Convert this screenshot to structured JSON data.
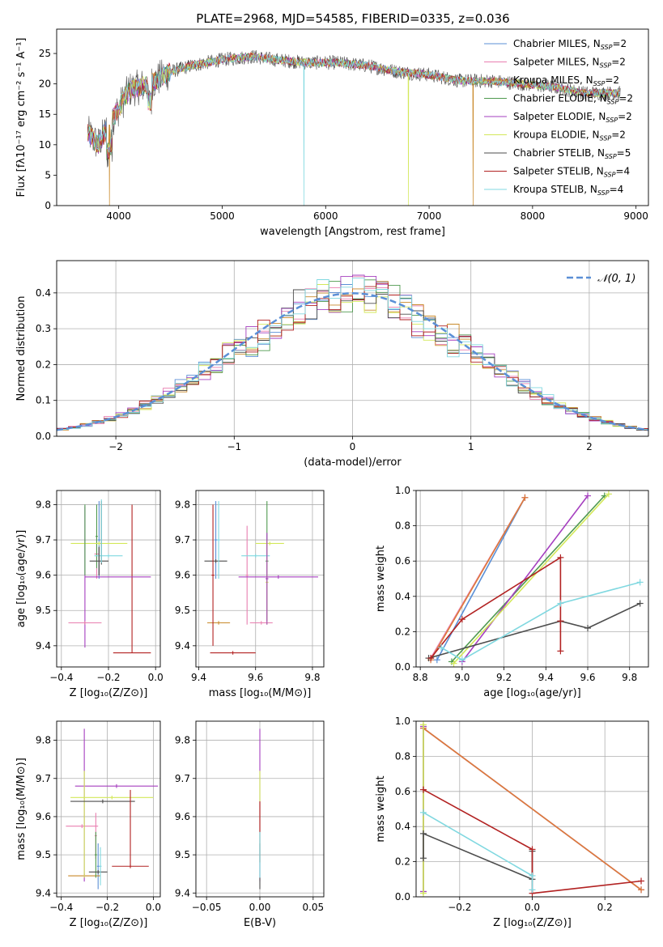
{
  "figure": {
    "title": "PLATE=2968, MJD=54585, FIBERID=0335, z=0.036"
  },
  "colors": {
    "Chabrier MILES": "#5b8fd6",
    "Salpeter MILES": "#e97fb0",
    "Kroupa MILES": "#c9892a",
    "Chabrier ELODIE": "#4f9a4f",
    "Salpeter ELODIE": "#a53fbf",
    "Kroupa ELODIE": "#d3e85a",
    "Chabrier STELIB": "#4d4d4d",
    "Salpeter STELIB": "#b22222",
    "Kroupa STELIB": "#80d8e0",
    "normal": "#5b8fd6",
    "orange_line": "#dd7a3a"
  },
  "chart_data": [
    {
      "id": "spectrum",
      "type": "line",
      "title": "PLATE=2968, MJD=54585, FIBERID=0335, z=0.036",
      "xlabel": "wavelength [Angstrom, rest frame]",
      "ylabel": "Flux [fλ10⁻¹⁷ erg cm⁻² s⁻¹ A⁻¹]",
      "xlim": [
        3400,
        9120
      ],
      "ylim": [
        0,
        29
      ],
      "xticks": [
        4000,
        5000,
        6000,
        7000,
        8000,
        9000
      ],
      "yticks": [
        0,
        5,
        10,
        15,
        20,
        25
      ],
      "grid": false,
      "legend_position": "top-right",
      "legend": [
        {
          "name": "Chabrier MILES",
          "nssp": "2"
        },
        {
          "name": "Salpeter MILES",
          "nssp": "2"
        },
        {
          "name": "Kroupa MILES",
          "nssp": "2"
        },
        {
          "name": "Chabrier ELODIE",
          "nssp": "2"
        },
        {
          "name": "Salpeter ELODIE",
          "nssp": "2"
        },
        {
          "name": "Kroupa ELODIE",
          "nssp": "2"
        },
        {
          "name": "Chabrier STELIB",
          "nssp": "5"
        },
        {
          "name": "Salpeter STELIB",
          "nssp": "4"
        },
        {
          "name": "Kroupa STELIB",
          "nssp": "4"
        }
      ],
      "continuum": {
        "x": [
          3700,
          3800,
          3900,
          4000,
          4100,
          4300,
          4500,
          4700,
          5000,
          5300,
          5500,
          5800,
          6100,
          6400,
          6700,
          7000,
          7300,
          7600,
          7900,
          8200,
          8500,
          8850
        ],
        "y": [
          12,
          10,
          13,
          16,
          19,
          20,
          22,
          23,
          24,
          24.5,
          24,
          23.5,
          23.5,
          23,
          22,
          21.5,
          20.5,
          20.5,
          20,
          19.5,
          18.5,
          18.5
        ]
      },
      "dropouts": [
        {
          "x": 3910,
          "series": "Kroupa MILES"
        },
        {
          "x": 5790,
          "series": "Kroupa STELIB"
        },
        {
          "x": 6800,
          "series": "Kroupa ELODIE"
        },
        {
          "x": 7425,
          "series": "Kroupa MILES"
        }
      ]
    },
    {
      "id": "residuals",
      "type": "line",
      "xlabel": "(data-model)/error",
      "ylabel": "Normed distribution",
      "xlim": [
        -2.5,
        2.5
      ],
      "ylim": [
        0,
        0.49
      ],
      "xticks": [
        -2,
        -1,
        0,
        1,
        2
      ],
      "xtick_labels": [
        "−2",
        "−1",
        "0",
        "1",
        "2"
      ],
      "yticks": [
        0.0,
        0.1,
        0.2,
        0.3,
        0.4
      ],
      "grid": true,
      "legend_position": "top-right",
      "legend": [
        {
          "name": "𝒩(0, 1)",
          "style": "dashed"
        }
      ],
      "bin_width": 0.1
    },
    {
      "id": "age_vs_z",
      "type": "scatter",
      "xlabel": "Z [log₁₀(Z/Z⊙)]",
      "ylabel": "age  [log₁₀(age/yr)]",
      "xlim": [
        -0.42,
        0.02
      ],
      "ylim": [
        9.34,
        9.84
      ],
      "xticks": [
        -0.4,
        -0.2,
        0.0
      ],
      "yticks": [
        9.4,
        9.5,
        9.6,
        9.7,
        9.8
      ],
      "grid": true,
      "points": [
        {
          "series": "Chabrier MILES",
          "x": -0.24,
          "xerr": 0.005,
          "y": 9.7,
          "yerr": 0.11
        },
        {
          "series": "Salpeter MILES",
          "x": -0.25,
          "xerr": 0.01,
          "y": 9.66,
          "yerr": 0.07
        },
        {
          "series": "Kroupa MILES",
          "x": -0.3,
          "xerr": 0.07,
          "y": 9.465,
          "yerr": 0.005
        },
        {
          "series": "Chabrier ELODIE",
          "x": -0.25,
          "xerr": 0.005,
          "y": 9.71,
          "yerr": 0.09
        },
        {
          "series": "Salpeter ELODIE",
          "x": -0.3,
          "xerr": 0.0,
          "y": 9.595,
          "yerr": 0.2
        },
        {
          "series": "Kroupa ELODIE",
          "x": -0.24,
          "xerr": 0.12,
          "y": 9.69,
          "yerr": 0.005
        },
        {
          "series": "Chabrier STELIB",
          "x": -0.24,
          "xerr": 0.04,
          "y": 9.64,
          "yerr": 0.04
        },
        {
          "series": "Salpeter STELIB",
          "x": -0.1,
          "xerr": 0.08,
          "y": 9.38,
          "yerr": 0.0
        },
        {
          "series": "Salpeter STELIB",
          "x": -0.1,
          "xerr": 0.0,
          "y": 9.59,
          "yerr": 0.21
        },
        {
          "series": "Salpeter ELODIE",
          "x": -0.16,
          "xerr": 0.14,
          "y": 9.595,
          "yerr": 0.0
        },
        {
          "series": "Kroupa STELIB",
          "x": -0.2,
          "xerr": 0.06,
          "y": 9.655,
          "yerr": 0.005
        },
        {
          "series": "Salpeter MILES",
          "x": -0.3,
          "xerr": 0.07,
          "y": 9.465,
          "yerr": 0.005
        },
        {
          "series": "Kroupa ELODIE",
          "x": -0.3,
          "xerr": 0.0,
          "y": 9.69,
          "yerr": 0.0
        },
        {
          "series": "Chabrier STELIB",
          "x": -0.23,
          "xerr": 0.0,
          "y": 9.72,
          "yerr": 0.09
        },
        {
          "series": "Kroupa STELIB",
          "x": -0.23,
          "xerr": 0.0,
          "y": 9.725,
          "yerr": 0.09
        },
        {
          "series": "Kroupa MILES",
          "x": -0.3,
          "xerr": 0.0,
          "y": 9.465,
          "yerr": 0.0
        },
        {
          "series": "Chabrier ELODIE",
          "x": -0.3,
          "xerr": 0.0,
          "y": 9.7,
          "yerr": 0.1
        },
        {
          "series": "Chabrier STELIB",
          "x": -0.24,
          "xerr": 0.0,
          "y": 9.64,
          "yerr": 0.04
        }
      ]
    },
    {
      "id": "age_vs_mass",
      "type": "scatter",
      "xlabel": "mass [log₁₀(M/M⊙)]",
      "ylabel": "",
      "xlim": [
        9.39,
        9.84
      ],
      "ylim": [
        9.34,
        9.84
      ],
      "xticks": [
        9.4,
        9.6,
        9.8
      ],
      "yticks": [
        9.4,
        9.5,
        9.6,
        9.7,
        9.8
      ],
      "grid": true,
      "points": [
        {
          "series": "Chabrier MILES",
          "x": 9.46,
          "xerr": 0.005,
          "y": 9.7,
          "yerr": 0.11
        },
        {
          "series": "Salpeter MILES",
          "x": 9.57,
          "xerr": 0.005,
          "y": 9.6,
          "yerr": 0.14
        },
        {
          "series": "Kroupa MILES",
          "x": 9.47,
          "xerr": 0.04,
          "y": 9.465,
          "yerr": 0.005
        },
        {
          "series": "Chabrier ELODIE",
          "x": 9.64,
          "xerr": 0.005,
          "y": 9.64,
          "yerr": 0.17
        },
        {
          "series": "Salpeter ELODIE",
          "x": 9.68,
          "xerr": 0.14,
          "y": 9.595,
          "yerr": 0.005
        },
        {
          "series": "Kroupa ELODIE",
          "x": 9.65,
          "xerr": 0.05,
          "y": 9.69,
          "yerr": 0.005
        },
        {
          "series": "Chabrier STELIB",
          "x": 9.46,
          "xerr": 0.04,
          "y": 9.64,
          "yerr": 0.005
        },
        {
          "series": "Salpeter STELIB",
          "x": 9.52,
          "xerr": 0.08,
          "y": 9.38,
          "yerr": 0.005
        },
        {
          "series": "Kroupa STELIB",
          "x": 9.47,
          "xerr": 0.005,
          "y": 9.7,
          "yerr": 0.11
        },
        {
          "series": "Salpeter STELIB",
          "x": 9.45,
          "xerr": 0.005,
          "y": 9.6,
          "yerr": 0.2
        },
        {
          "series": "Salpeter MILES",
          "x": 9.62,
          "xerr": 0.04,
          "y": 9.465,
          "yerr": 0.005
        },
        {
          "series": "Kroupa ELODIE",
          "x": 9.64,
          "xerr": 0.005,
          "y": 9.58,
          "yerr": 0.12
        },
        {
          "series": "Kroupa STELIB",
          "x": 9.6,
          "xerr": 0.05,
          "y": 9.655,
          "yerr": 0.005
        },
        {
          "series": "Salpeter ELODIE",
          "x": 9.64,
          "xerr": 0.005,
          "y": 9.59,
          "yerr": 0.13
        }
      ]
    },
    {
      "id": "mass_weight_vs_age",
      "type": "line",
      "xlabel": "age  [log₁₀(age/yr)]",
      "ylabel": "mass weight",
      "xlim": [
        8.78,
        9.89
      ],
      "ylim": [
        0,
        1.0
      ],
      "xticks": [
        8.8,
        9.0,
        9.2,
        9.4,
        9.6,
        9.8
      ],
      "yticks": [
        0.0,
        0.2,
        0.4,
        0.6,
        0.8,
        1.0
      ],
      "grid": true,
      "series": [
        {
          "name": "Chabrier MILES",
          "x": [
            8.88,
            9.3
          ],
          "y": [
            0.04,
            0.96
          ]
        },
        {
          "name": "Salpeter MILES",
          "x": [
            8.85,
            9.3
          ],
          "y": [
            0.05,
            0.96
          ]
        },
        {
          "name": "Kroupa MILES",
          "x": [
            8.85,
            9.3
          ],
          "y": [
            0.04,
            0.96
          ]
        },
        {
          "name": "Chabrier ELODIE",
          "x": [
            8.95,
            9.68
          ],
          "y": [
            0.03,
            0.97
          ]
        },
        {
          "name": "Salpeter ELODIE",
          "x": [
            9.0,
            9.6
          ],
          "y": [
            0.03,
            0.97
          ]
        },
        {
          "name": "Kroupa ELODIE",
          "x": [
            8.96,
            9.7
          ],
          "y": [
            0.02,
            0.98
          ]
        },
        {
          "name": "Chabrier STELIB",
          "x": [
            8.84,
            9.47,
            9.6,
            9.85
          ],
          "y": [
            0.05,
            0.26,
            0.22,
            0.36
          ]
        },
        {
          "name": "Salpeter STELIB",
          "x": [
            8.85,
            9.0,
            9.47,
            9.47,
            9.47
          ],
          "y": [
            0.05,
            0.27,
            0.62,
            0.26,
            0.09
          ]
        },
        {
          "name": "Kroupa STELIB",
          "x": [
            8.9,
            9.0,
            9.47,
            9.85
          ],
          "y": [
            0.11,
            0.04,
            0.36,
            0.48
          ]
        }
      ]
    },
    {
      "id": "mass_vs_z",
      "type": "scatter",
      "xlabel": "Z [log₁₀(Z/Z⊙)]",
      "ylabel": "mass [log₁₀(M/M⊙)]",
      "xlim": [
        -0.42,
        0.03
      ],
      "ylim": [
        9.39,
        9.85
      ],
      "xticks": [
        -0.4,
        -0.2,
        0.0
      ],
      "yticks": [
        9.4,
        9.5,
        9.6,
        9.7,
        9.8
      ],
      "grid": true,
      "points": [
        {
          "series": "Chabrier MILES",
          "x": -0.24,
          "xerr": 0.005,
          "y": 9.47,
          "yerr": 0.06
        },
        {
          "series": "Salpeter MILES",
          "x": -0.31,
          "xerr": 0.07,
          "y": 9.575,
          "yerr": 0.005
        },
        {
          "series": "Salpeter MILES",
          "x": -0.25,
          "xerr": 0.005,
          "y": 9.55,
          "yerr": 0.06
        },
        {
          "series": "Kroupa MILES",
          "x": -0.3,
          "xerr": 0.07,
          "y": 9.445,
          "yerr": 0.005
        },
        {
          "series": "Chabrier ELODIE",
          "x": -0.25,
          "xerr": 0.005,
          "y": 9.5,
          "yerr": 0.06
        },
        {
          "series": "Salpeter ELODIE",
          "x": -0.3,
          "xerr": 0.0,
          "y": 9.63,
          "yerr": 0.2
        },
        {
          "series": "Salpeter ELODIE",
          "x": -0.16,
          "xerr": 0.18,
          "y": 9.68,
          "yerr": 0.005
        },
        {
          "series": "Kroupa ELODIE",
          "x": -0.3,
          "xerr": 0.0,
          "y": 9.58,
          "yerr": 0.14
        },
        {
          "series": "Kroupa ELODIE",
          "x": -0.18,
          "xerr": 0.18,
          "y": 9.65,
          "yerr": 0.005
        },
        {
          "series": "Chabrier STELIB",
          "x": -0.24,
          "xerr": 0.04,
          "y": 9.455,
          "yerr": 0.005
        },
        {
          "series": "Chabrier STELIB",
          "x": -0.22,
          "xerr": 0.14,
          "y": 9.64,
          "yerr": 0.005
        },
        {
          "series": "Salpeter STELIB",
          "x": -0.1,
          "xerr": 0.08,
          "y": 9.47,
          "yerr": 0.005
        },
        {
          "series": "Salpeter STELIB",
          "x": -0.1,
          "xerr": 0.0,
          "y": 9.57,
          "yerr": 0.1
        },
        {
          "series": "Kroupa STELIB",
          "x": -0.23,
          "xerr": 0.005,
          "y": 9.47,
          "yerr": 0.05
        }
      ]
    },
    {
      "id": "mass_vs_ebv",
      "type": "scatter",
      "xlabel": "E(B-V)",
      "ylabel": "",
      "xlim": [
        -0.06,
        0.06
      ],
      "ylim": [
        9.39,
        9.85
      ],
      "xticks": [
        -0.05,
        0.0,
        0.05
      ],
      "xtick_labels": [
        "−0.05",
        "0.00",
        "0.05"
      ],
      "yticks": [
        9.4,
        9.5,
        9.6,
        9.7,
        9.8
      ],
      "grid": true,
      "points": [
        {
          "series": "Salpeter ELODIE",
          "x": 0.0,
          "xerr": 0.0,
          "y": 9.63,
          "yerr": 0.2
        },
        {
          "series": "Kroupa ELODIE",
          "x": 0.0,
          "xerr": 0.0,
          "y": 9.6,
          "yerr": 0.12
        },
        {
          "series": "Salpeter STELIB",
          "x": 0.0,
          "xerr": 0.0,
          "y": 9.56,
          "yerr": 0.08
        },
        {
          "series": "Chabrier STELIB",
          "x": 0.0,
          "xerr": 0.0,
          "y": 9.47,
          "yerr": 0.06
        },
        {
          "series": "Kroupa STELIB",
          "x": 0.0,
          "xerr": 0.0,
          "y": 9.5,
          "yerr": 0.06
        }
      ]
    },
    {
      "id": "mass_weight_vs_z",
      "type": "line",
      "xlabel": "Z [log₁₀(Z/Z⊙)]",
      "ylabel": "mass weight",
      "xlim": [
        -0.32,
        0.32
      ],
      "ylim": [
        0,
        1.0
      ],
      "xticks": [
        -0.2,
        0.0,
        0.2
      ],
      "xtick_labels": [
        "−0.2",
        "0.0",
        "0.2"
      ],
      "yticks": [
        0.0,
        0.2,
        0.4,
        0.6,
        0.8,
        1.0
      ],
      "grid": true,
      "series": [
        {
          "name": "Chabrier MILES",
          "x": [
            -0.3,
            0.3
          ],
          "y": [
            0.96,
            0.04
          ]
        },
        {
          "name": "Salpeter MILES",
          "x": [
            -0.3,
            0.3
          ],
          "y": [
            0.96,
            0.04
          ]
        },
        {
          "name": "Kroupa MILES",
          "x": [
            -0.3,
            0.3
          ],
          "y": [
            0.96,
            0.04
          ]
        },
        {
          "name": "Chabrier ELODIE",
          "x": [
            -0.3,
            -0.3
          ],
          "y": [
            0.97,
            0.03
          ]
        },
        {
          "name": "Salpeter ELODIE",
          "x": [
            -0.3,
            -0.3
          ],
          "y": [
            0.97,
            0.03
          ]
        },
        {
          "name": "Kroupa ELODIE",
          "x": [
            -0.3,
            -0.3
          ],
          "y": [
            0.98,
            0.02
          ]
        },
        {
          "name": "Chabrier STELIB",
          "x": [
            -0.3,
            -0.3,
            0.0,
            0.0
          ],
          "y": [
            0.22,
            0.36,
            0.1,
            0.26
          ]
        },
        {
          "name": "Salpeter STELIB",
          "x": [
            -0.3,
            0.0,
            0.0,
            0.3
          ],
          "y": [
            0.61,
            0.27,
            0.02,
            0.09
          ]
        },
        {
          "name": "Kroupa STELIB",
          "x": [
            -0.3,
            0.0,
            0.0
          ],
          "y": [
            0.48,
            0.12,
            0.04
          ]
        }
      ]
    }
  ]
}
